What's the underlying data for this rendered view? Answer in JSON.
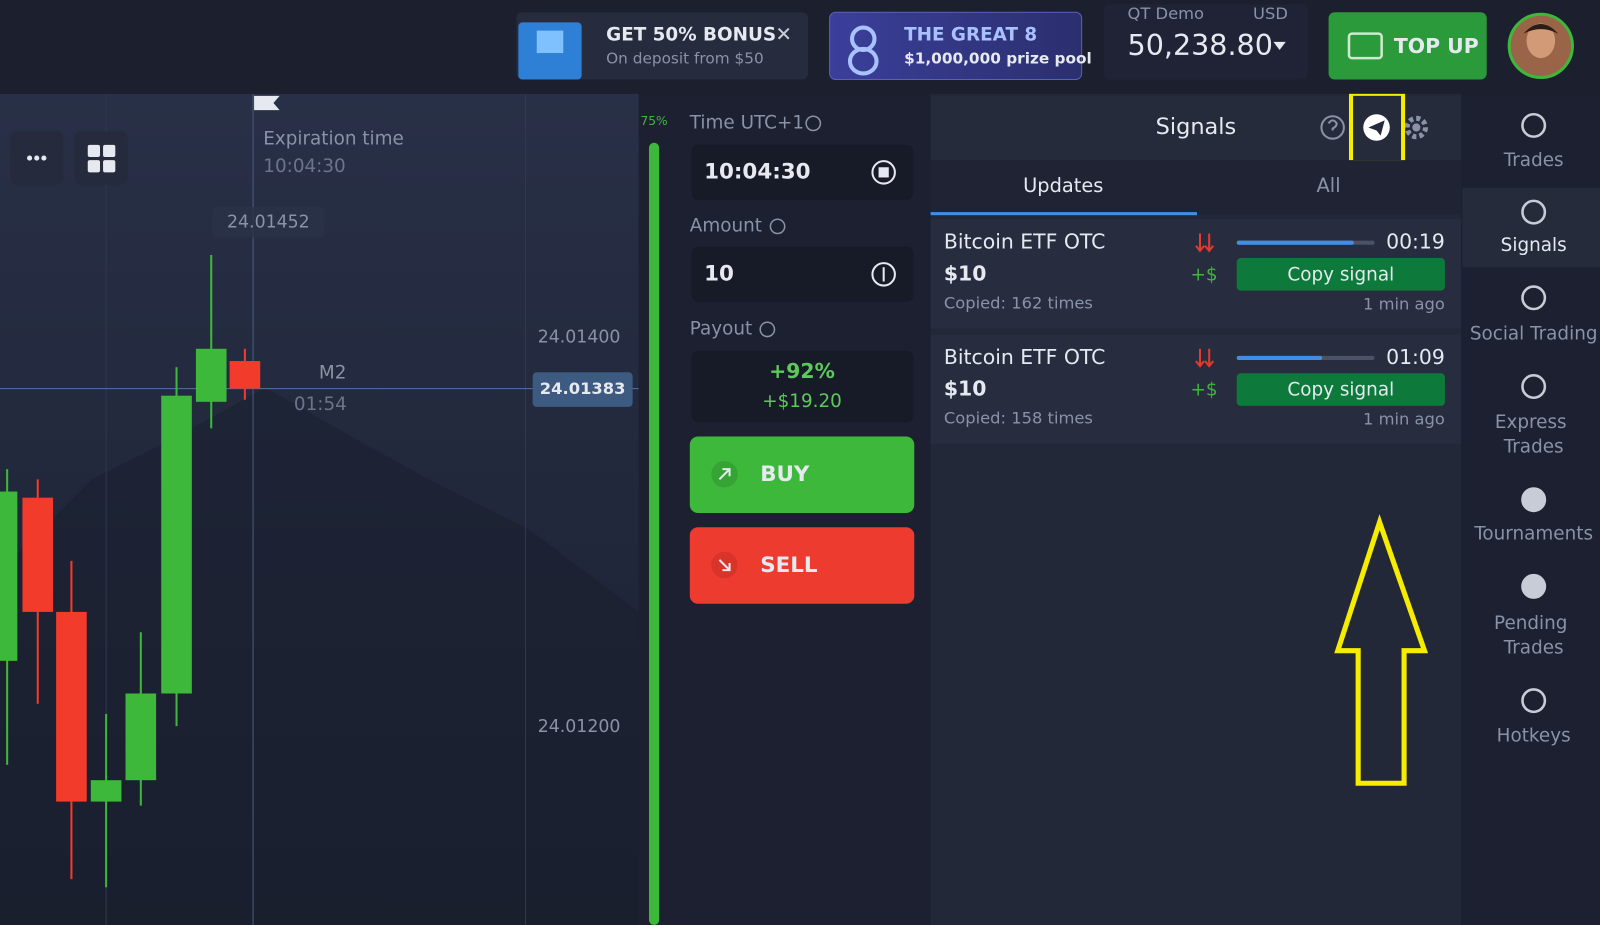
{
  "header": {
    "bonus_banner": {
      "title": "GET 50% BONUS",
      "subtitle": "On deposit from $50"
    },
    "tournament_banner": {
      "title": "THE GREAT 8",
      "subtitle": "$1,000,000 prize pool"
    },
    "account": {
      "type": "QT Demo",
      "currency": "USD",
      "balance": "50,238.80"
    },
    "top_up": "TOP UP"
  },
  "chart": {
    "expiration_label": "Expiration time",
    "expiration_time": "10:04:30",
    "high_label": "24.01452",
    "price_labels": [
      "24.01400",
      "24.01200"
    ],
    "current_price": "24.01383",
    "timeframe": "M2",
    "countdown": "01:54",
    "sentiment": "75%"
  },
  "trade_panel": {
    "time_label": "Time UTC+1",
    "time": "10:04:30",
    "amount_label": "Amount",
    "amount": "10",
    "payout_label": "Payout",
    "payout_percent": "+92%",
    "payout_amount": "+$19.20",
    "buy": "BUY",
    "sell": "SELL"
  },
  "signals": {
    "title": "Signals",
    "tabs": [
      "Updates",
      "All"
    ],
    "items": [
      {
        "asset": "Bitcoin ETF OTC",
        "amount": "$10",
        "copied": "Copied: 162 times",
        "profit": "+$",
        "timer": "00:19",
        "button": "Copy signal",
        "age": "1 min ago"
      },
      {
        "asset": "Bitcoin ETF OTC",
        "amount": "$10",
        "copied": "Copied: 158 times",
        "profit": "+$",
        "timer": "01:09",
        "button": "Copy signal",
        "age": "1 min ago"
      }
    ]
  },
  "sidebar": {
    "items": [
      "Trades",
      "Signals",
      "Social Trading",
      "Express Trades",
      "Tournaments",
      "Pending Trades",
      "Hotkeys"
    ]
  }
}
